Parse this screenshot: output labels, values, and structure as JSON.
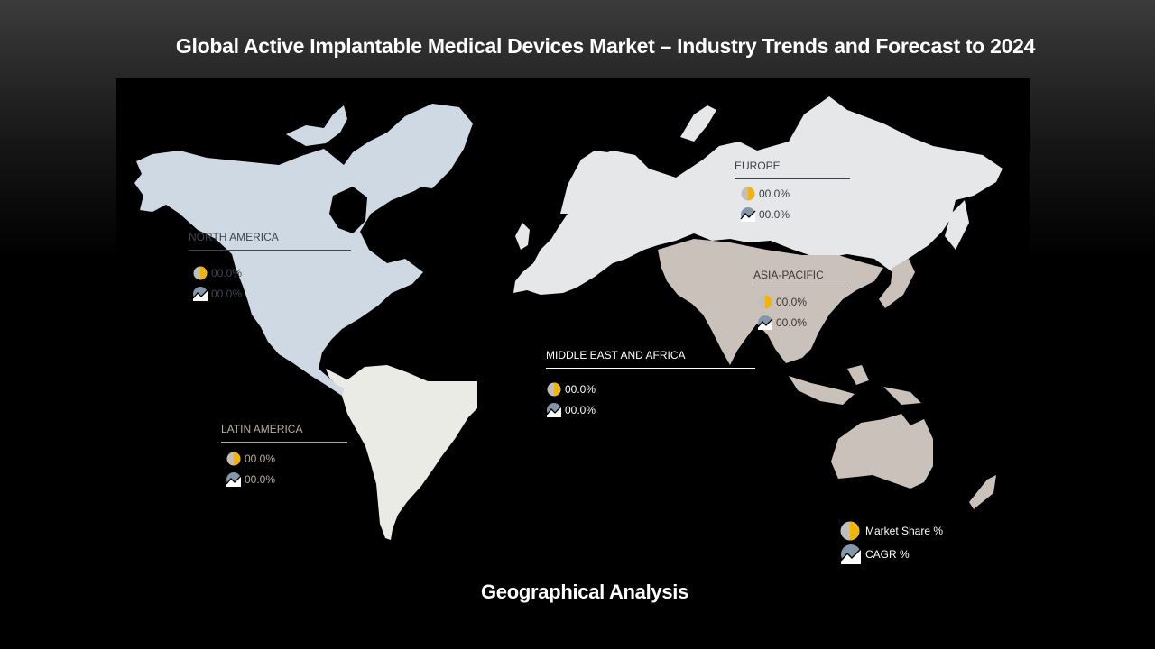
{
  "slide": {
    "title": "Global Active Implantable Medical Devices Market – Industry Trends and Forecast to 2024",
    "footer": "Geographical Analysis"
  },
  "regions": {
    "north_america": {
      "name": "NORTH AMERICA",
      "market_share": "00.0%",
      "cagr": "00.0%",
      "text_color": "#3c4650"
    },
    "europe": {
      "name": "EUROPE",
      "market_share": "00.0%",
      "cagr": "00.0%",
      "text_color": "#3c4047"
    },
    "asia_pacific": {
      "name": "ASIA-PACIFIC",
      "market_share": "00.0%",
      "cagr": "00.0%",
      "text_color": "#3e3633"
    },
    "middle_east_africa": {
      "name": "MIDDLE EAST AND AFRICA",
      "market_share": "00.0%",
      "cagr": "00.0%",
      "text_color": "#ffffff"
    },
    "latin_america": {
      "name": "LATIN AMERICA",
      "market_share": "00.0%",
      "cagr": "00.0%",
      "text_color": "#b5ad9a"
    }
  },
  "legend": {
    "market_share": "Market Share  %",
    "cagr": "CAGR %"
  },
  "colors": {
    "north_america_land": "#cfd9e3",
    "europe_land": "#e6e7e9",
    "asia_pacific_land": "#cbc1bb",
    "latin_america_land": "#ebebe6",
    "pie_accent": "#f4b400",
    "pie_base": "#bfbfbf",
    "cagr_icon": "#8496a9"
  },
  "icons": {
    "market_share": "pie-chart-icon",
    "cagr": "trend-line-icon"
  }
}
